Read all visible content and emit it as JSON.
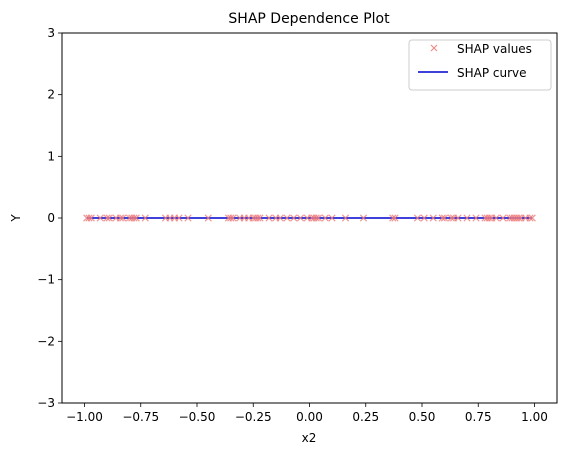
{
  "chart_data": {
    "type": "scatter",
    "title": "SHAP Dependence Plot",
    "xlabel": "x2",
    "ylabel": "Y",
    "xlim": [
      -1.1,
      1.1
    ],
    "ylim": [
      -3,
      3
    ],
    "xticks": [
      -1.0,
      -0.75,
      -0.5,
      -0.25,
      0.0,
      0.25,
      0.5,
      0.75,
      1.0
    ],
    "xtick_labels": [
      "−1.00",
      "−0.75",
      "−0.50",
      "−0.25",
      "0.00",
      "0.25",
      "0.50",
      "0.75",
      "1.00"
    ],
    "yticks": [
      -3,
      -2,
      -1,
      0,
      1,
      2,
      3
    ],
    "ytick_labels": [
      "−3",
      "−2",
      "−1",
      "0",
      "1",
      "2",
      "3"
    ],
    "grid": false,
    "legend_position": "top-right",
    "series": [
      {
        "name": "SHAP values",
        "kind": "markers",
        "marker": "x",
        "color": "#f08080",
        "x": [
          -0.99,
          -0.98,
          -0.97,
          -0.93,
          -0.9,
          -0.89,
          -0.86,
          -0.84,
          -0.83,
          -0.8,
          -0.79,
          -0.78,
          -0.77,
          -0.73,
          -0.64,
          -0.62,
          -0.6,
          -0.58,
          -0.54,
          -0.45,
          -0.36,
          -0.35,
          -0.34,
          -0.31,
          -0.29,
          -0.27,
          -0.25,
          -0.24,
          -0.23,
          -0.22,
          -0.18,
          -0.15,
          -0.13,
          -0.1,
          -0.07,
          -0.04,
          -0.01,
          0.01,
          0.02,
          0.03,
          0.04,
          0.07,
          0.1,
          0.16,
          0.24,
          0.37,
          0.38,
          0.48,
          0.51,
          0.55,
          0.59,
          0.6,
          0.63,
          0.64,
          0.66,
          0.7,
          0.74,
          0.78,
          0.79,
          0.8,
          0.81,
          0.83,
          0.86,
          0.89,
          0.9,
          0.91,
          0.92,
          0.93,
          0.94,
          0.96,
          0.98,
          0.99
        ],
        "y": [
          0,
          0,
          0,
          0,
          0,
          0,
          0,
          0,
          0,
          0,
          0,
          0,
          0,
          0,
          0,
          0,
          0,
          0,
          0,
          0,
          0,
          0,
          0,
          0,
          0,
          0,
          0,
          0,
          0,
          0,
          0,
          0,
          0,
          0,
          0,
          0,
          0,
          0,
          0,
          0,
          0,
          0,
          0,
          0,
          0,
          0,
          0,
          0,
          0,
          0,
          0,
          0,
          0,
          0,
          0,
          0,
          0,
          0,
          0,
          0,
          0,
          0,
          0,
          0,
          0,
          0,
          0,
          0,
          0,
          0,
          0,
          0
        ]
      },
      {
        "name": "SHAP curve",
        "kind": "line",
        "color": "#0000cd",
        "x": [
          -0.99,
          0.99
        ],
        "y": [
          0,
          0
        ]
      }
    ]
  }
}
